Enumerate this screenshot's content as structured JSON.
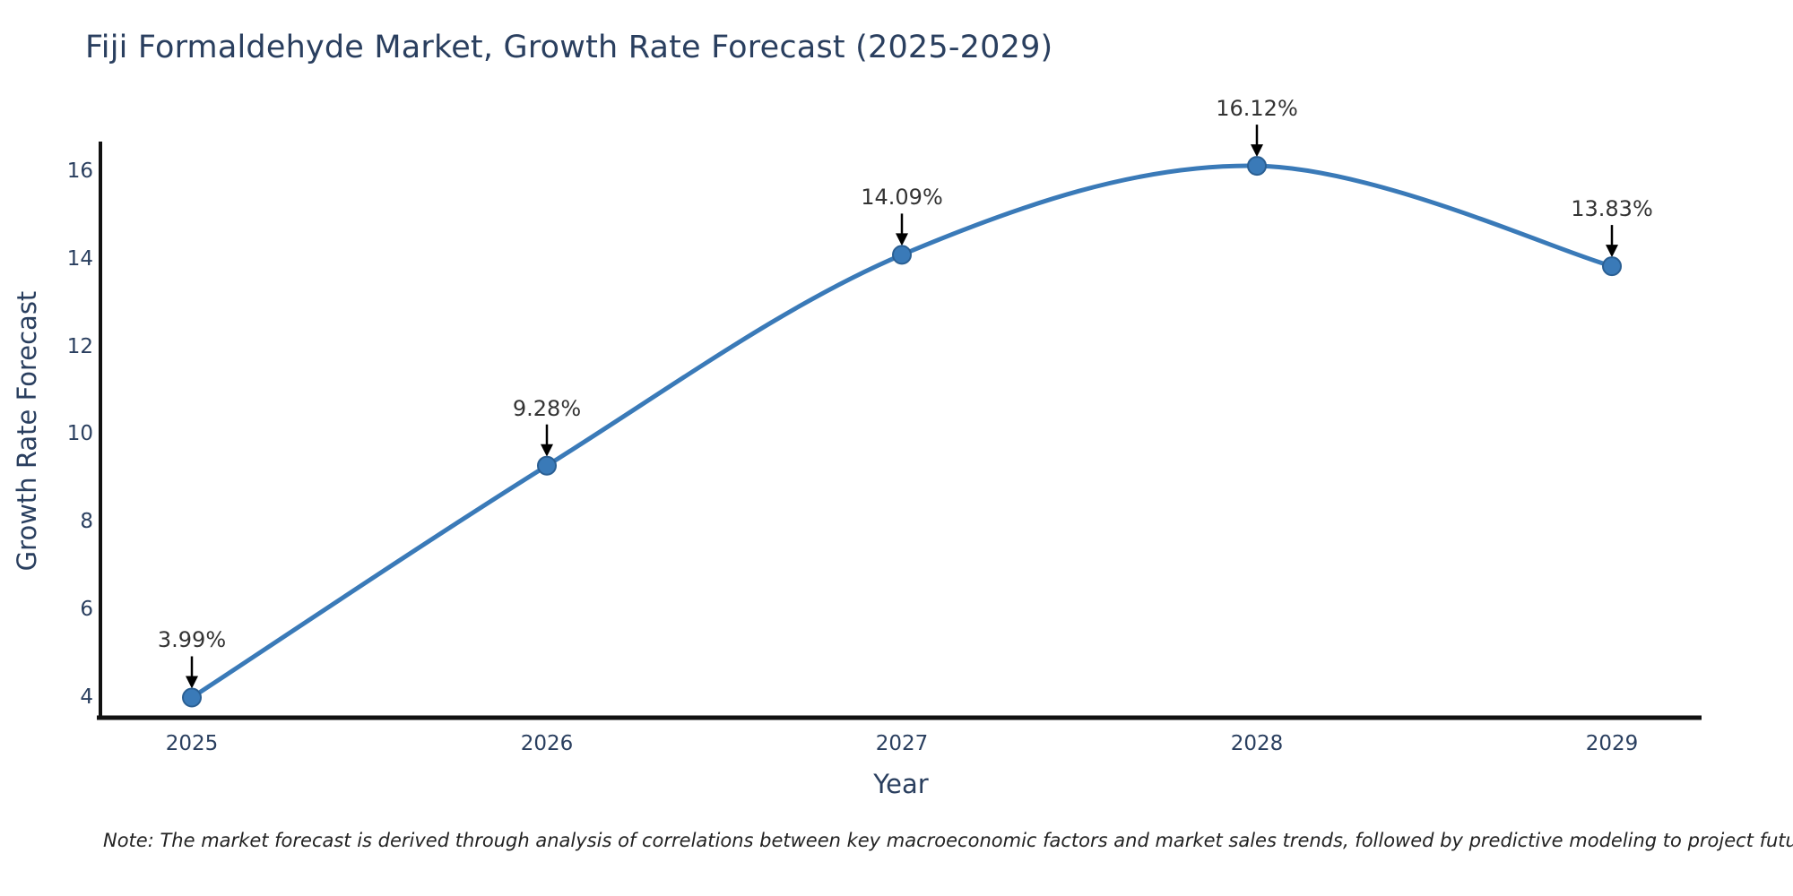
{
  "title": "Fiji Formaldehyde Market, Growth Rate Forecast (2025-2029)",
  "note": "Note: The market forecast is derived through analysis of correlations between key macroeconomic factors and market sales trends, followed by predictive modeling to project future sales",
  "chart_data": {
    "type": "line",
    "line_shape": "spline",
    "title": "Fiji Formaldehyde Market, Growth Rate Forecast (2025-2029)",
    "xlabel": "Year",
    "ylabel": "Growth Rate Forecast",
    "categories": [
      "2025",
      "2026",
      "2027",
      "2028",
      "2029"
    ],
    "values": [
      3.99,
      9.28,
      14.09,
      16.12,
      13.83
    ],
    "point_labels": [
      "3.99%",
      "9.28%",
      "14.09%",
      "16.12%",
      "13.83%"
    ],
    "y_ticks": [
      4,
      6,
      8,
      10,
      12,
      14,
      16
    ],
    "ylim": [
      3.55,
      16.65
    ],
    "grid": false,
    "legend": "none",
    "annotation_arrows": true,
    "colors": {
      "line": "#3a7ab8",
      "marker": "#3a7ab8",
      "marker_edge": "#2a5f93",
      "axis": "#111111",
      "text": "#2a3f5f",
      "annotation": "#333333"
    }
  }
}
